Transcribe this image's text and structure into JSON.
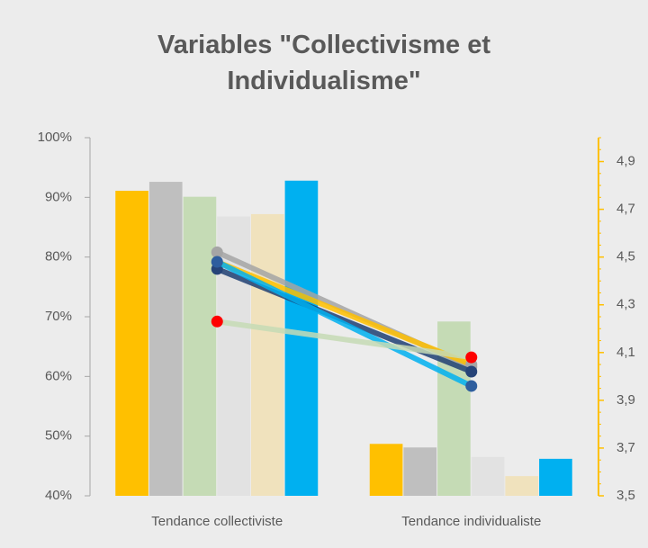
{
  "chart_data": {
    "type": "bar",
    "title": "Variables \"Collectivisme et Individualisme\"",
    "categories": [
      "Tendance collectiviste",
      "Tendance individualiste"
    ],
    "series": [
      {
        "type": "bar",
        "color": "#ffc000",
        "values": [
          91.1,
          48.7
        ]
      },
      {
        "type": "bar",
        "color": "#bfbfbf",
        "values": [
          92.6,
          48.1
        ]
      },
      {
        "type": "bar",
        "color": "#c5dbb5",
        "values": [
          90.1,
          69.2
        ]
      },
      {
        "type": "bar",
        "color": "#e2e2e2",
        "values": [
          86.8,
          46.5
        ]
      },
      {
        "type": "bar",
        "color": "#f0e2bd",
        "values": [
          87.2,
          43.3
        ]
      },
      {
        "type": "bar",
        "color": "#00b0f0",
        "values": [
          92.8,
          46.2
        ]
      },
      {
        "type": "line",
        "axis": "y2",
        "color": "#a5a5a5",
        "marker_color": "#a5a5a5",
        "values": [
          4.52,
          4.04
        ]
      },
      {
        "type": "line",
        "axis": "y2",
        "color": "#ffc000",
        "marker_color": "#a5a5a5",
        "values": [
          4.48,
          4.05
        ]
      },
      {
        "type": "line",
        "axis": "y2",
        "color": "#1f3f73",
        "marker_color": "#264478",
        "values": [
          4.45,
          4.02
        ]
      },
      {
        "type": "line",
        "axis": "y2",
        "color": "#00b0f0",
        "marker_color": "#2e5e9e",
        "values": [
          4.48,
          3.96
        ]
      },
      {
        "type": "line",
        "axis": "y2",
        "color": "#c5dbb5",
        "marker_color": "#ff0000",
        "values": [
          4.23,
          4.08
        ]
      }
    ],
    "ylim": [
      40,
      100
    ],
    "yticks": [
      {
        "value": 40,
        "label": "40%"
      },
      {
        "value": 50,
        "label": "50%"
      },
      {
        "value": 60,
        "label": "60%"
      },
      {
        "value": 70,
        "label": "70%"
      },
      {
        "value": 80,
        "label": "80%"
      },
      {
        "value": 90,
        "label": "90%"
      },
      {
        "value": 100,
        "label": "100%"
      }
    ],
    "y2lim": [
      3.5,
      5.0
    ],
    "y2ticks": [
      {
        "value": 3.5,
        "label": "3,5"
      },
      {
        "value": 3.7,
        "label": "3,7"
      },
      {
        "value": 3.9,
        "label": "3,9"
      },
      {
        "value": 4.1,
        "label": "4,1"
      },
      {
        "value": 4.3,
        "label": "4,3"
      },
      {
        "value": 4.5,
        "label": "4,5"
      },
      {
        "value": 4.7,
        "label": "4,7"
      },
      {
        "value": 4.9,
        "label": "4,9"
      }
    ],
    "y2_axis_color": "#ffc000"
  }
}
